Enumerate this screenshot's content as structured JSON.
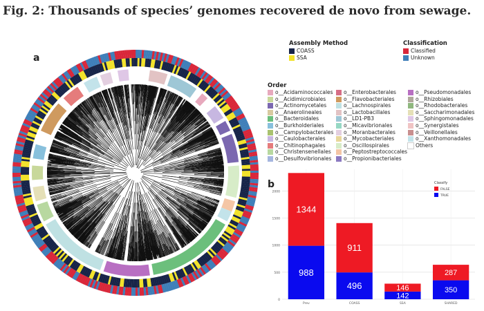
{
  "figure_title": "Fig. 2: Thousands of species’ genomes recovered de novo from sewage.",
  "panels": {
    "a": "a",
    "b": "b"
  },
  "legend_assembly": {
    "title": "Assembly Method",
    "items": [
      {
        "label": "COASS",
        "color": "#172448"
      },
      {
        "label": "SSA",
        "color": "#f2e22a"
      }
    ]
  },
  "legend_classification": {
    "title": "Classification",
    "items": [
      {
        "label": "Classified",
        "color": "#d9273a"
      },
      {
        "label": "Unknown",
        "color": "#3f7fb9"
      }
    ]
  },
  "legend_order": {
    "title": "Order",
    "items": [
      {
        "label": "o__Acidaminococcales",
        "color": "#e7a9bd"
      },
      {
        "label": "o__Acidimicrobiales",
        "color": "#c8d89a"
      },
      {
        "label": "o__Actinomycetales",
        "color": "#7b68b0"
      },
      {
        "label": "o__Anaerolineales",
        "color": "#d8caa0"
      },
      {
        "label": "o__Bacteroidales",
        "color": "#6cbf7c"
      },
      {
        "label": "o__Burkholderiales",
        "color": "#88c0dc"
      },
      {
        "label": "o__Campylobacterales",
        "color": "#a9c26f"
      },
      {
        "label": "o__Caulobacterales",
        "color": "#c7b7e1"
      },
      {
        "label": "o__Chitinophagales",
        "color": "#e57c7c"
      },
      {
        "label": "o__Christensenellales",
        "color": "#b8d8a0"
      },
      {
        "label": "o__Desulfovibrionales",
        "color": "#a5b6df"
      },
      {
        "label": "o__Enterobacterales",
        "color": "#d66d86"
      },
      {
        "label": "o__Flavobacteriales",
        "color": "#cf9a5f"
      },
      {
        "label": "o__Lachnospirales",
        "color": "#bfe1e3"
      },
      {
        "label": "o__Lactobacillales",
        "color": "#e2c3c4"
      },
      {
        "label": "o__LD1-PB3",
        "color": "#9ec7d6"
      },
      {
        "label": "o__Micavibrionales",
        "color": "#96d8c4"
      },
      {
        "label": "o__Moranbacterales",
        "color": "#e3cfe0"
      },
      {
        "label": "o__Mycobacteriales",
        "color": "#e8d79a"
      },
      {
        "label": "o__Oscillospirales",
        "color": "#d7ecc8"
      },
      {
        "label": "o__Peptostreptococcales",
        "color": "#f4c6a6"
      },
      {
        "label": "o__Propionibacteriales",
        "color": "#8b79c1"
      },
      {
        "label": "o__Pseudomonadales",
        "color": "#b86fc2"
      },
      {
        "label": "o__Rhizobiales",
        "color": "#b0a89c"
      },
      {
        "label": "o__Rhodobacterales",
        "color": "#8fb77e"
      },
      {
        "label": "o__Saccharimonadales",
        "color": "#e5e0b7"
      },
      {
        "label": "o__Sphingomonadales",
        "color": "#dfc7e6"
      },
      {
        "label": "o__Synergistales",
        "color": "#f0c4c4"
      },
      {
        "label": "o__Veillonellales",
        "color": "#c88f8f"
      },
      {
        "label": "o__Xanthomonadales",
        "color": "#c3e3ea"
      },
      {
        "label": "Others",
        "color": "#ffffff"
      }
    ]
  },
  "chart_data": {
    "type": "bar",
    "stacked": true,
    "categories": [
      "Prev",
      "COASS",
      "SSA",
      "SHARED"
    ],
    "series": [
      {
        "name": "TRUE",
        "color": "#0a0aef",
        "values": [
          988,
          496,
          142,
          350
        ]
      },
      {
        "name": "FALSE",
        "color": "#ee1a24",
        "values": [
          1344,
          911,
          146,
          287
        ]
      }
    ],
    "legend_title": "Classify",
    "legend_placement": "top-right",
    "ylim": [
      0,
      2400
    ],
    "yticks": [
      0,
      500,
      1000,
      1500,
      2000
    ],
    "grid": true,
    "xlabel": "",
    "ylabel": ""
  }
}
